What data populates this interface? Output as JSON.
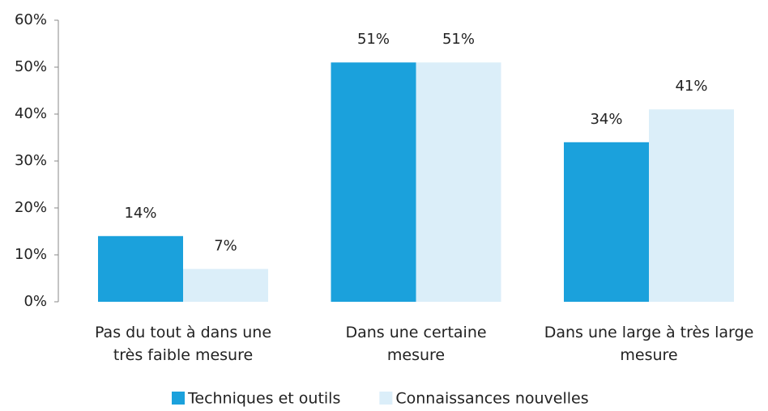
{
  "chart_data": {
    "type": "bar",
    "categories": [
      "Pas du tout à dans une\ntrès faible mesure",
      "Dans une certaine\nmesure",
      "Dans une large à très large\nmesure"
    ],
    "series": [
      {
        "name": "Techniques et outils",
        "color": "#1ba1dc",
        "values": [
          14,
          51,
          34
        ],
        "value_labels": [
          "14%",
          "51%",
          "34%"
        ]
      },
      {
        "name": "Connaissances nouvelles",
        "color": "#dbeef9",
        "values": [
          7,
          51,
          41
        ],
        "value_labels": [
          "7%",
          "51%",
          "41%"
        ]
      }
    ],
    "ylim": [
      0,
      60
    ],
    "yticks": [
      {
        "value": 0,
        "label": "0%"
      },
      {
        "value": 10,
        "label": "10%"
      },
      {
        "value": 20,
        "label": "20%"
      },
      {
        "value": 30,
        "label": "30%"
      },
      {
        "value": 40,
        "label": "40%"
      },
      {
        "value": 50,
        "label": "50%"
      },
      {
        "value": 60,
        "label": "60%"
      }
    ],
    "grid": false,
    "legend": "bottom"
  }
}
